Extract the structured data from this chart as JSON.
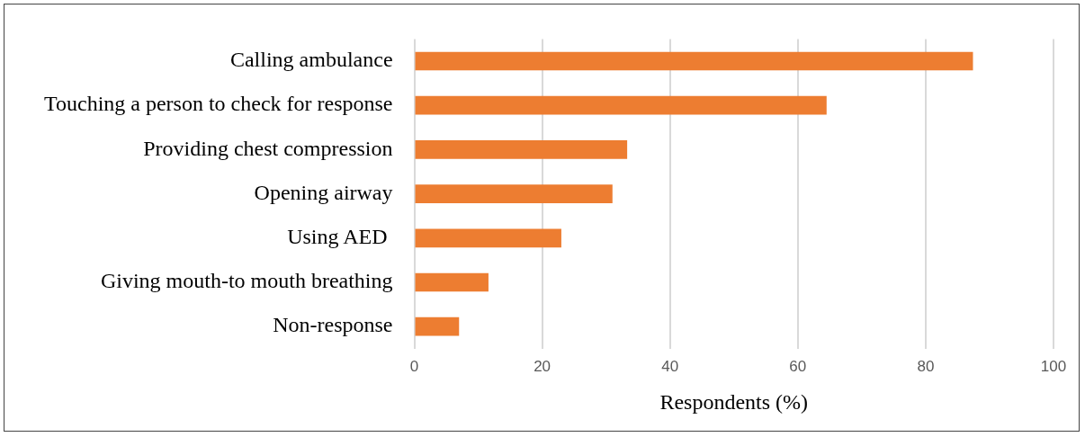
{
  "chart_data": {
    "type": "bar",
    "orientation": "horizontal",
    "xlabel": "Respondents (%)",
    "categories": [
      "Calling ambulance",
      "Touching a person to check for response",
      "Providing chest compression",
      "Opening airway",
      "Using AED ",
      "Giving mouth-to mouth breathing",
      "Non-response"
    ],
    "values": [
      87.4,
      64.5,
      33.3,
      31.0,
      23.0,
      11.6,
      7.0
    ],
    "color": "#ed7d31",
    "xlim": [
      0,
      100
    ],
    "xticks": [
      0,
      20,
      40,
      60,
      80,
      100
    ],
    "grid": "x",
    "legend": false
  }
}
